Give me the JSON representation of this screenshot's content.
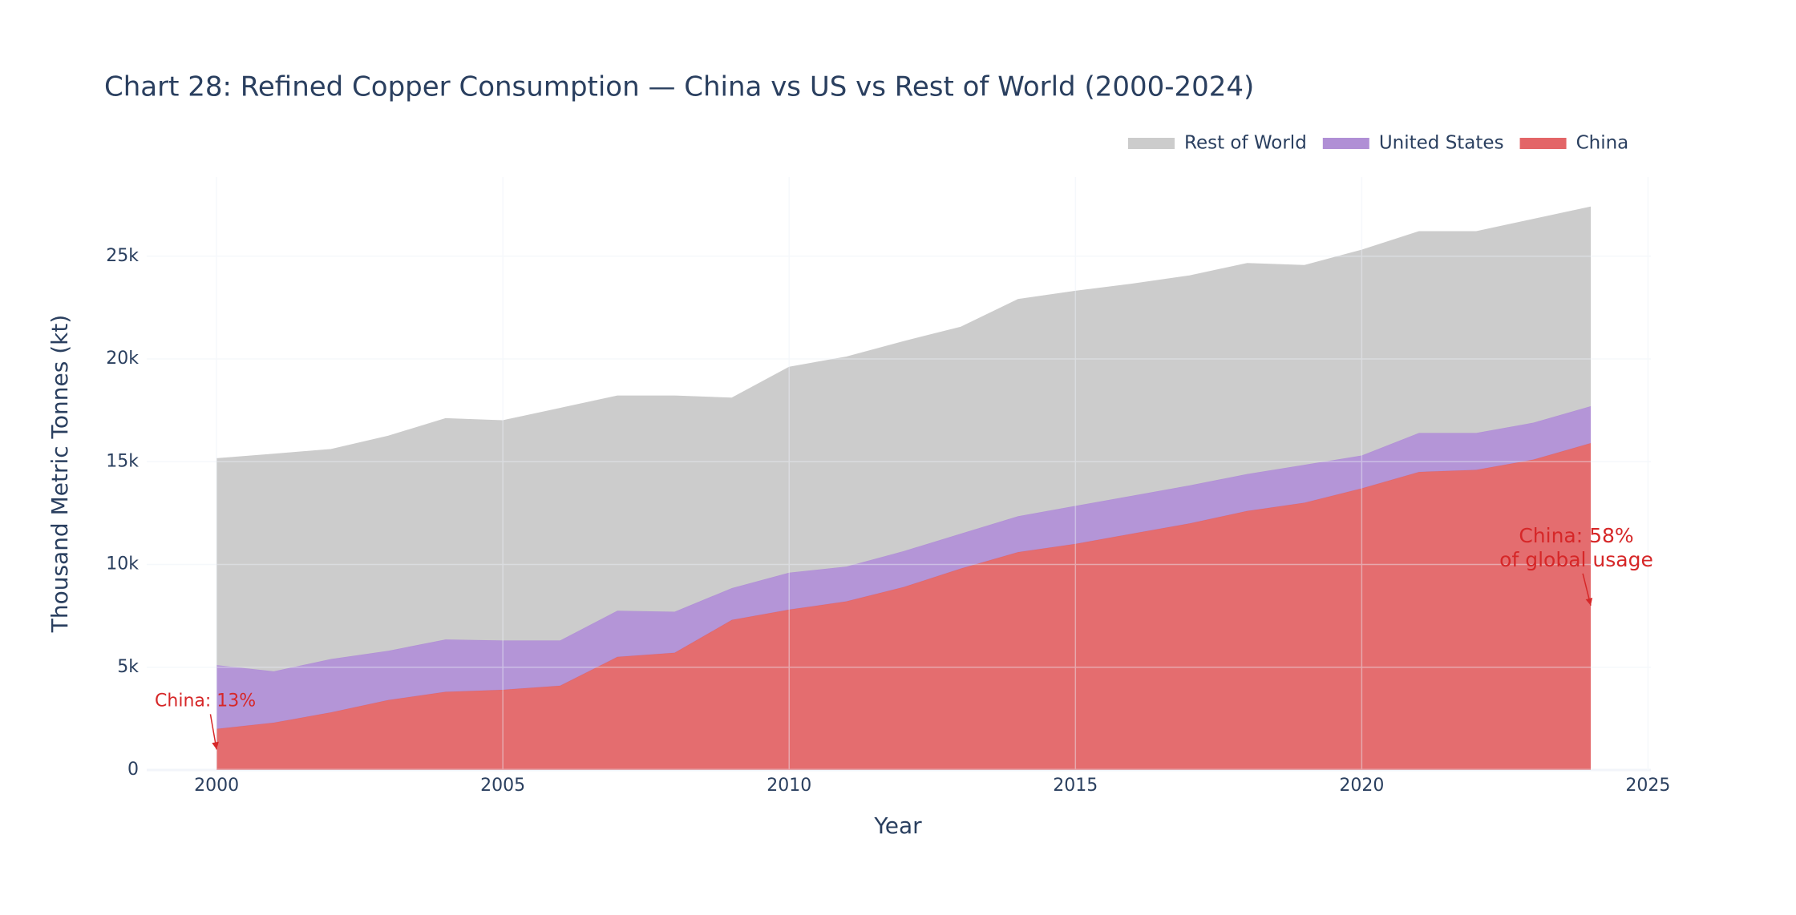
{
  "chart_data": {
    "type": "stacked-area",
    "title": "Chart 28: Refined Copper Consumption — China vs US vs Rest of World (2000-2024)",
    "x_label": "Year",
    "y_label": "Thousand Metric Tonnes (kt)",
    "x": [
      2000,
      2001,
      2002,
      2003,
      2004,
      2005,
      2006,
      2007,
      2008,
      2009,
      2010,
      2011,
      2012,
      2013,
      2014,
      2015,
      2016,
      2017,
      2018,
      2019,
      2020,
      2021,
      2022,
      2023,
      2024
    ],
    "series": [
      {
        "name": "China",
        "color": "#e36567",
        "values": [
          2000,
          2300,
          2800,
          3400,
          3800,
          3900,
          4100,
          5500,
          5700,
          7300,
          7800,
          8200,
          8900,
          9800,
          10600,
          11000,
          11500,
          12000,
          12600,
          13000,
          13700,
          14500,
          14600,
          15100,
          15900
        ]
      },
      {
        "name": "United States",
        "color": "#b08fd5",
        "values": [
          3100,
          2500,
          2600,
          2400,
          2550,
          2400,
          2200,
          2250,
          2000,
          1550,
          1800,
          1700,
          1750,
          1700,
          1750,
          1850,
          1850,
          1850,
          1800,
          1850,
          1600,
          1900,
          1800,
          1800,
          1800
        ]
      },
      {
        "name": "Rest of World",
        "color": "#cccccc",
        "values": [
          10050,
          10570,
          10200,
          10450,
          10750,
          10700,
          11300,
          10450,
          10500,
          9250,
          10000,
          10200,
          10200,
          10050,
          10550,
          10450,
          10300,
          10200,
          10250,
          9700,
          10000,
          9800,
          9800,
          9900,
          9700
        ]
      }
    ],
    "xlim": [
      1998.78,
      2025.05
    ],
    "xticks": [
      2000,
      2005,
      2010,
      2015,
      2020,
      2025
    ],
    "ylim": [
      0,
      28850
    ],
    "yticks": [
      0,
      {
        "value": 5000,
        "label": "5k"
      },
      {
        "value": 10000,
        "label": "10k"
      },
      {
        "value": 15000,
        "label": "15k"
      },
      {
        "value": 20000,
        "label": "20k"
      },
      {
        "value": 25000,
        "label": "25k"
      }
    ],
    "grid": true,
    "legend": "top-right",
    "annotations": [
      {
        "text": [
          "China: 13%"
        ],
        "x": 2000,
        "y": 1000,
        "color": "#d62728"
      },
      {
        "text": [
          "China: 58%",
          "of global usage"
        ],
        "x": 2024,
        "y": 8000,
        "color": "#d62728"
      }
    ]
  }
}
